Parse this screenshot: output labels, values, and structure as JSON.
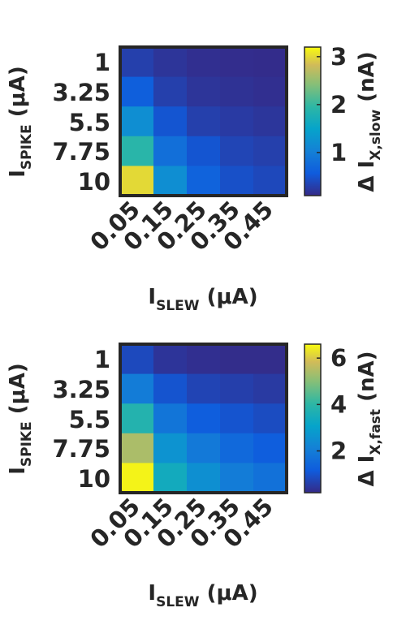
{
  "chart_data": [
    {
      "type": "heatmap",
      "title": "",
      "x_categories": [
        "0.05",
        "0.15",
        "0.25",
        "0.35",
        "0.45"
      ],
      "y_categories": [
        "1",
        "3.25",
        "5.5",
        "7.75",
        "10"
      ],
      "xlabel": {
        "main": "I",
        "sub": "SLEW",
        "unit": " (μA)"
      },
      "ylabel": {
        "main": "I",
        "sub": "SPIKE",
        "unit": " (μA)"
      },
      "colorbar": {
        "label": {
          "prefix": "Δ I",
          "sub": "X,slow",
          "unit": " (nA)"
        },
        "range": [
          0.1,
          3.2
        ],
        "ticks": [
          "1",
          "2",
          "3"
        ],
        "tick_values": [
          1,
          2,
          3
        ]
      },
      "values": [
        [
          0.3,
          0.2,
          0.15,
          0.13,
          0.12
        ],
        [
          0.6,
          0.3,
          0.2,
          0.17,
          0.15
        ],
        [
          1.2,
          0.5,
          0.3,
          0.25,
          0.21
        ],
        [
          1.9,
          0.8,
          0.5,
          0.35,
          0.3
        ],
        [
          3.0,
          1.2,
          0.65,
          0.45,
          0.38
        ]
      ]
    },
    {
      "type": "heatmap",
      "title": "",
      "x_categories": [
        "0.05",
        "0.15",
        "0.25",
        "0.35",
        "0.45"
      ],
      "y_categories": [
        "1",
        "3.25",
        "5.5",
        "7.75",
        "10"
      ],
      "xlabel": {
        "main": "I",
        "sub": "SLEW",
        "unit": " (μA)"
      },
      "ylabel": {
        "main": "I",
        "sub": "SPIKE",
        "unit": " (μA)"
      },
      "colorbar": {
        "label": {
          "prefix": "Δ I",
          "sub": "X,fast",
          "unit": " (nA)"
        },
        "range": [
          0.2,
          6.6
        ],
        "ticks": [
          "2",
          "4",
          "6"
        ],
        "tick_values": [
          2,
          4,
          6
        ]
      },
      "values": [
        [
          0.8,
          0.4,
          0.3,
          0.25,
          0.25
        ],
        [
          2.0,
          1.0,
          0.7,
          0.6,
          0.5
        ],
        [
          3.8,
          1.8,
          1.2,
          1.0,
          0.85
        ],
        [
          5.4,
          2.6,
          1.9,
          1.5,
          1.2
        ],
        [
          6.5,
          3.4,
          2.5,
          2.0,
          1.7
        ]
      ]
    }
  ]
}
